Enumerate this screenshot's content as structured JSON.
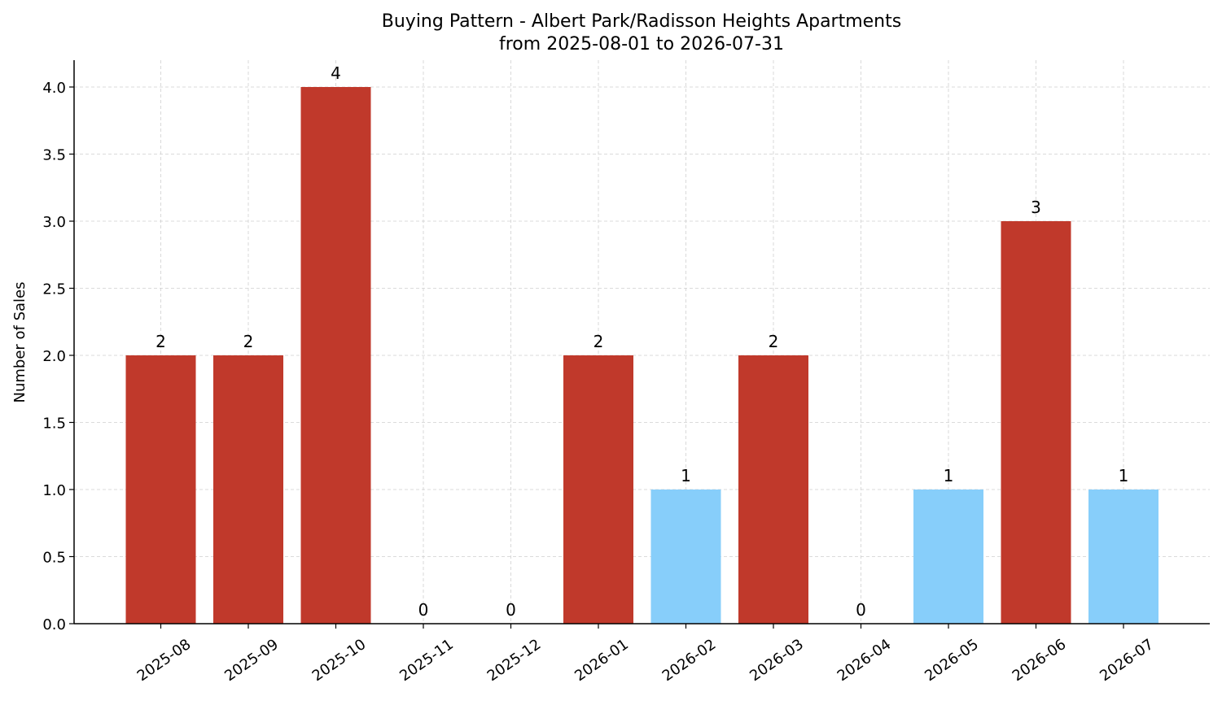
{
  "chart_data": {
    "type": "bar",
    "title_line1": "Buying Pattern - Albert Park/Radisson Heights Apartments",
    "title_line2": "from 2025-08-01 to 2026-07-31",
    "xlabel": "",
    "ylabel": "Number of Sales",
    "ylim": [
      0,
      4.2
    ],
    "yticks": [
      "0.0",
      "0.5",
      "1.0",
      "1.5",
      "2.0",
      "2.5",
      "3.0",
      "3.5",
      "4.0"
    ],
    "categories": [
      "2025-08",
      "2025-09",
      "2025-10",
      "2025-11",
      "2025-12",
      "2026-01",
      "2026-02",
      "2026-03",
      "2026-04",
      "2026-05",
      "2026-06",
      "2026-07"
    ],
    "values": [
      2,
      2,
      4,
      0,
      0,
      2,
      1,
      2,
      0,
      1,
      3,
      1
    ],
    "grid": true,
    "colors": {
      "high": "#c0392b",
      "low": "#87cefa",
      "grid": "#d0d0d0"
    }
  }
}
